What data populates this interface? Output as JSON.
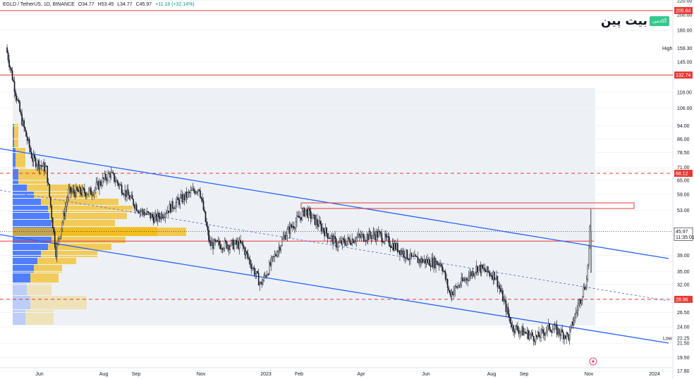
{
  "header": {
    "symbol": "EGLD / TetherUS, 1D, BINANCE",
    "open": "O34.77",
    "high": "H53.45",
    "low": "L34.77",
    "close": "C45.97",
    "change": "+11.18 (+32.14%)"
  },
  "logo": {
    "text": "بیت پین",
    "badge": "آکادمی"
  },
  "colors": {
    "up": "#089981",
    "down": "#131722",
    "accent_red": "#e53935",
    "channel_blue": "#2962ff",
    "vp_blue": "#2962ff",
    "vp_orange": "#f2b705"
  },
  "chart_data": {
    "type": "candlestick",
    "y_scale": "log",
    "ylim": [
      16.5,
      226
    ],
    "y_ticks": [
      "220.00",
      "200.00",
      "180.00",
      "145.00",
      "118.00",
      "106.00",
      "94.00",
      "86.00",
      "78.50",
      "71.00",
      "65.00",
      "59.00",
      "53.00",
      "39.00",
      "35.00",
      "32.00",
      "26.50",
      "24.00",
      "21.50",
      "19.50",
      "17.80"
    ],
    "x_ticks": [
      "Jun",
      "Aug",
      "Sep",
      "Nov",
      "2023",
      "Feb",
      "Apr",
      "Jun",
      "Aug",
      "Sep",
      "Nov",
      "2024"
    ],
    "price_markers": [
      {
        "label": "205.64",
        "value": 205.64,
        "style": "solid"
      },
      {
        "label": "132.74",
        "value": 132.74,
        "style": "solid"
      },
      {
        "label": "68.12",
        "value": 68.12,
        "style": "dashed"
      },
      {
        "label": "45.97",
        "value": 45.97,
        "style": "current",
        "time": "11:35:01"
      },
      {
        "label": "28.96",
        "value": 28.96,
        "style": "dashed"
      }
    ],
    "high_label": {
      "label": "High",
      "value": "159.30"
    },
    "low_label": {
      "label": "Low",
      "value": "22.25"
    },
    "series": [
      {
        "key_points": [
          [
            "2022-05-02",
            160
          ],
          [
            "2022-05-16",
            100
          ],
          [
            "2022-05-27",
            75
          ],
          [
            "2022-06-09",
            70
          ],
          [
            "2022-06-18",
            40
          ],
          [
            "2022-06-30",
            60
          ],
          [
            "2022-07-21",
            60
          ],
          [
            "2022-08-08",
            68
          ],
          [
            "2022-09-05",
            53
          ],
          [
            "2022-09-20",
            50
          ],
          [
            "2022-10-10",
            56
          ],
          [
            "2022-10-31",
            62
          ],
          [
            "2022-11-10",
            42
          ],
          [
            "2022-12-10",
            42
          ],
          [
            "2022-12-28",
            32
          ],
          [
            "2023-01-20",
            45
          ],
          [
            "2023-02-08",
            53
          ],
          [
            "2023-03-10",
            42
          ],
          [
            "2023-03-28",
            44
          ],
          [
            "2023-04-18",
            45
          ],
          [
            "2023-05-20",
            38
          ],
          [
            "2023-06-16",
            37
          ],
          [
            "2023-06-24",
            30
          ],
          [
            "2023-07-20",
            36
          ],
          [
            "2023-08-06",
            34
          ],
          [
            "2023-08-22",
            24
          ],
          [
            "2023-09-14",
            22.3
          ],
          [
            "2023-09-26",
            24
          ],
          [
            "2023-10-14",
            22.5
          ],
          [
            "2023-10-24",
            28.5
          ],
          [
            "2023-10-31",
            33
          ],
          [
            "2023-11-03",
            45.97
          ]
        ]
      }
    ]
  }
}
